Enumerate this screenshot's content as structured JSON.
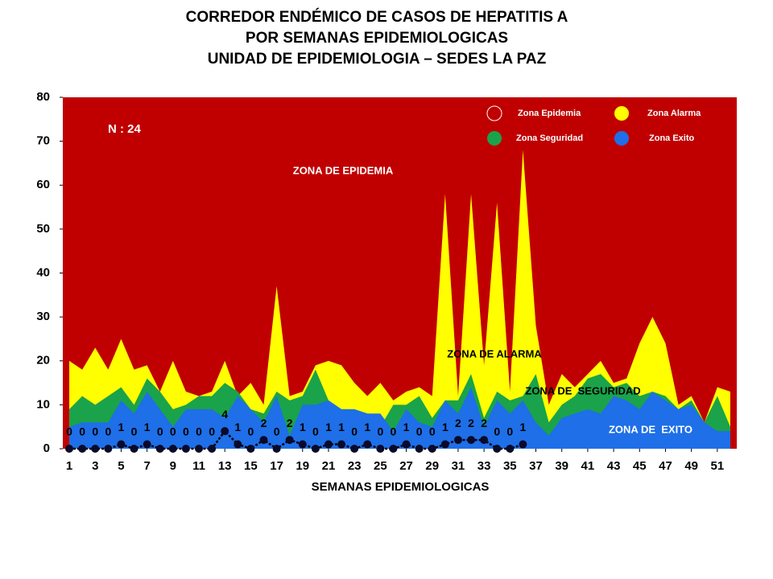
{
  "chart_data": {
    "type": "area",
    "title": [
      "CORREDOR ENDÉMICO DE CASOS DE HEPATITIS A",
      "POR SEMANAS EPIDEMIOLOGICAS",
      "UNIDAD DE EPIDEMIOLOGIA – SEDES LA PAZ"
    ],
    "x_label": "SEMANAS EPIDEMIOLOGICAS",
    "x": [
      1,
      2,
      3,
      4,
      5,
      6,
      7,
      8,
      9,
      10,
      11,
      12,
      13,
      14,
      15,
      16,
      17,
      18,
      19,
      20,
      21,
      22,
      23,
      24,
      25,
      26,
      27,
      28,
      29,
      30,
      31,
      32,
      33,
      34,
      35,
      36,
      37,
      38,
      39,
      40,
      41,
      42,
      43,
      44,
      45,
      46,
      47,
      48,
      49,
      50,
      51,
      52
    ],
    "xlim": [
      0.5,
      52.5
    ],
    "xticks": [
      1,
      3,
      5,
      7,
      9,
      11,
      13,
      15,
      17,
      19,
      21,
      23,
      25,
      27,
      29,
      31,
      33,
      35,
      37,
      39,
      41,
      43,
      45,
      47,
      49,
      51
    ],
    "ylim": [
      0,
      80
    ],
    "yticks": [
      0,
      10,
      20,
      30,
      40,
      50,
      60,
      70,
      80
    ],
    "legend_position": "upper right",
    "series": [
      {
        "name": "Zona Epidemia",
        "color": "#c00000",
        "values": [
          80,
          80,
          80,
          80,
          80,
          80,
          80,
          80,
          80,
          80,
          80,
          80,
          80,
          80,
          80,
          80,
          80,
          80,
          80,
          80,
          80,
          80,
          80,
          80,
          80,
          80,
          80,
          80,
          80,
          80,
          80,
          80,
          80,
          80,
          80,
          80,
          80,
          80,
          80,
          80,
          80,
          80,
          80,
          80,
          80,
          80,
          80,
          80,
          80,
          80,
          80,
          80
        ]
      },
      {
        "name": "Zona Alarma",
        "color": "#ffff00",
        "values": [
          20,
          18,
          23,
          18,
          25,
          18,
          19,
          13,
          20,
          13,
          12,
          13,
          20,
          12,
          15,
          10,
          37,
          12,
          13,
          19,
          20,
          19,
          15,
          12,
          15,
          11,
          13,
          14,
          12,
          58,
          12,
          58,
          19,
          56,
          13,
          68,
          28,
          10,
          17,
          14,
          17,
          20,
          15,
          16,
          24,
          30,
          24,
          10,
          12,
          6,
          14,
          13
        ]
      },
      {
        "name": "Zona Seguridad",
        "color": "#1aa34a",
        "values": [
          9,
          12,
          10,
          12,
          14,
          10,
          16,
          13,
          9,
          10,
          12,
          12,
          15,
          13,
          9,
          8,
          13,
          11,
          12,
          18,
          11,
          9,
          9,
          8,
          5,
          10,
          10,
          12,
          7,
          11,
          11,
          17,
          7,
          13,
          11,
          12,
          17,
          6,
          10,
          12,
          16,
          17,
          14,
          15,
          12,
          13,
          12,
          9,
          11,
          6,
          12,
          5
        ]
      },
      {
        "name": "Zona Exito",
        "color": "#1e6fe8",
        "values": [
          5,
          6,
          6,
          6,
          11,
          8,
          13,
          9,
          5,
          9,
          9,
          9,
          7,
          12,
          9,
          6,
          12,
          3,
          10,
          10,
          11,
          9,
          9,
          8,
          8,
          4,
          9,
          6,
          5,
          11,
          8,
          14,
          5,
          11,
          8,
          11,
          6,
          3,
          7,
          8,
          9,
          8,
          12,
          11,
          9,
          13,
          11,
          9,
          10,
          6,
          4,
          4
        ]
      }
    ],
    "cases": {
      "color": "#000000",
      "values": [
        0,
        0,
        0,
        0,
        1,
        0,
        1,
        0,
        0,
        0,
        0,
        0,
        4,
        1,
        0,
        2,
        0,
        2,
        1,
        0,
        1,
        1,
        0,
        1,
        0,
        0,
        1,
        0,
        0,
        1,
        2,
        2,
        2,
        0,
        0,
        1,
        null,
        null,
        null,
        null,
        null,
        null,
        null,
        null,
        null,
        null,
        null,
        null,
        null,
        null,
        null,
        null
      ]
    },
    "annotations": [
      "N : 24",
      "ZONA DE EPIDEMIA",
      "ZONA DE ALARMA",
      "ZONA DE  SEGURIDAD",
      "ZONA DE  EXITO"
    ]
  }
}
